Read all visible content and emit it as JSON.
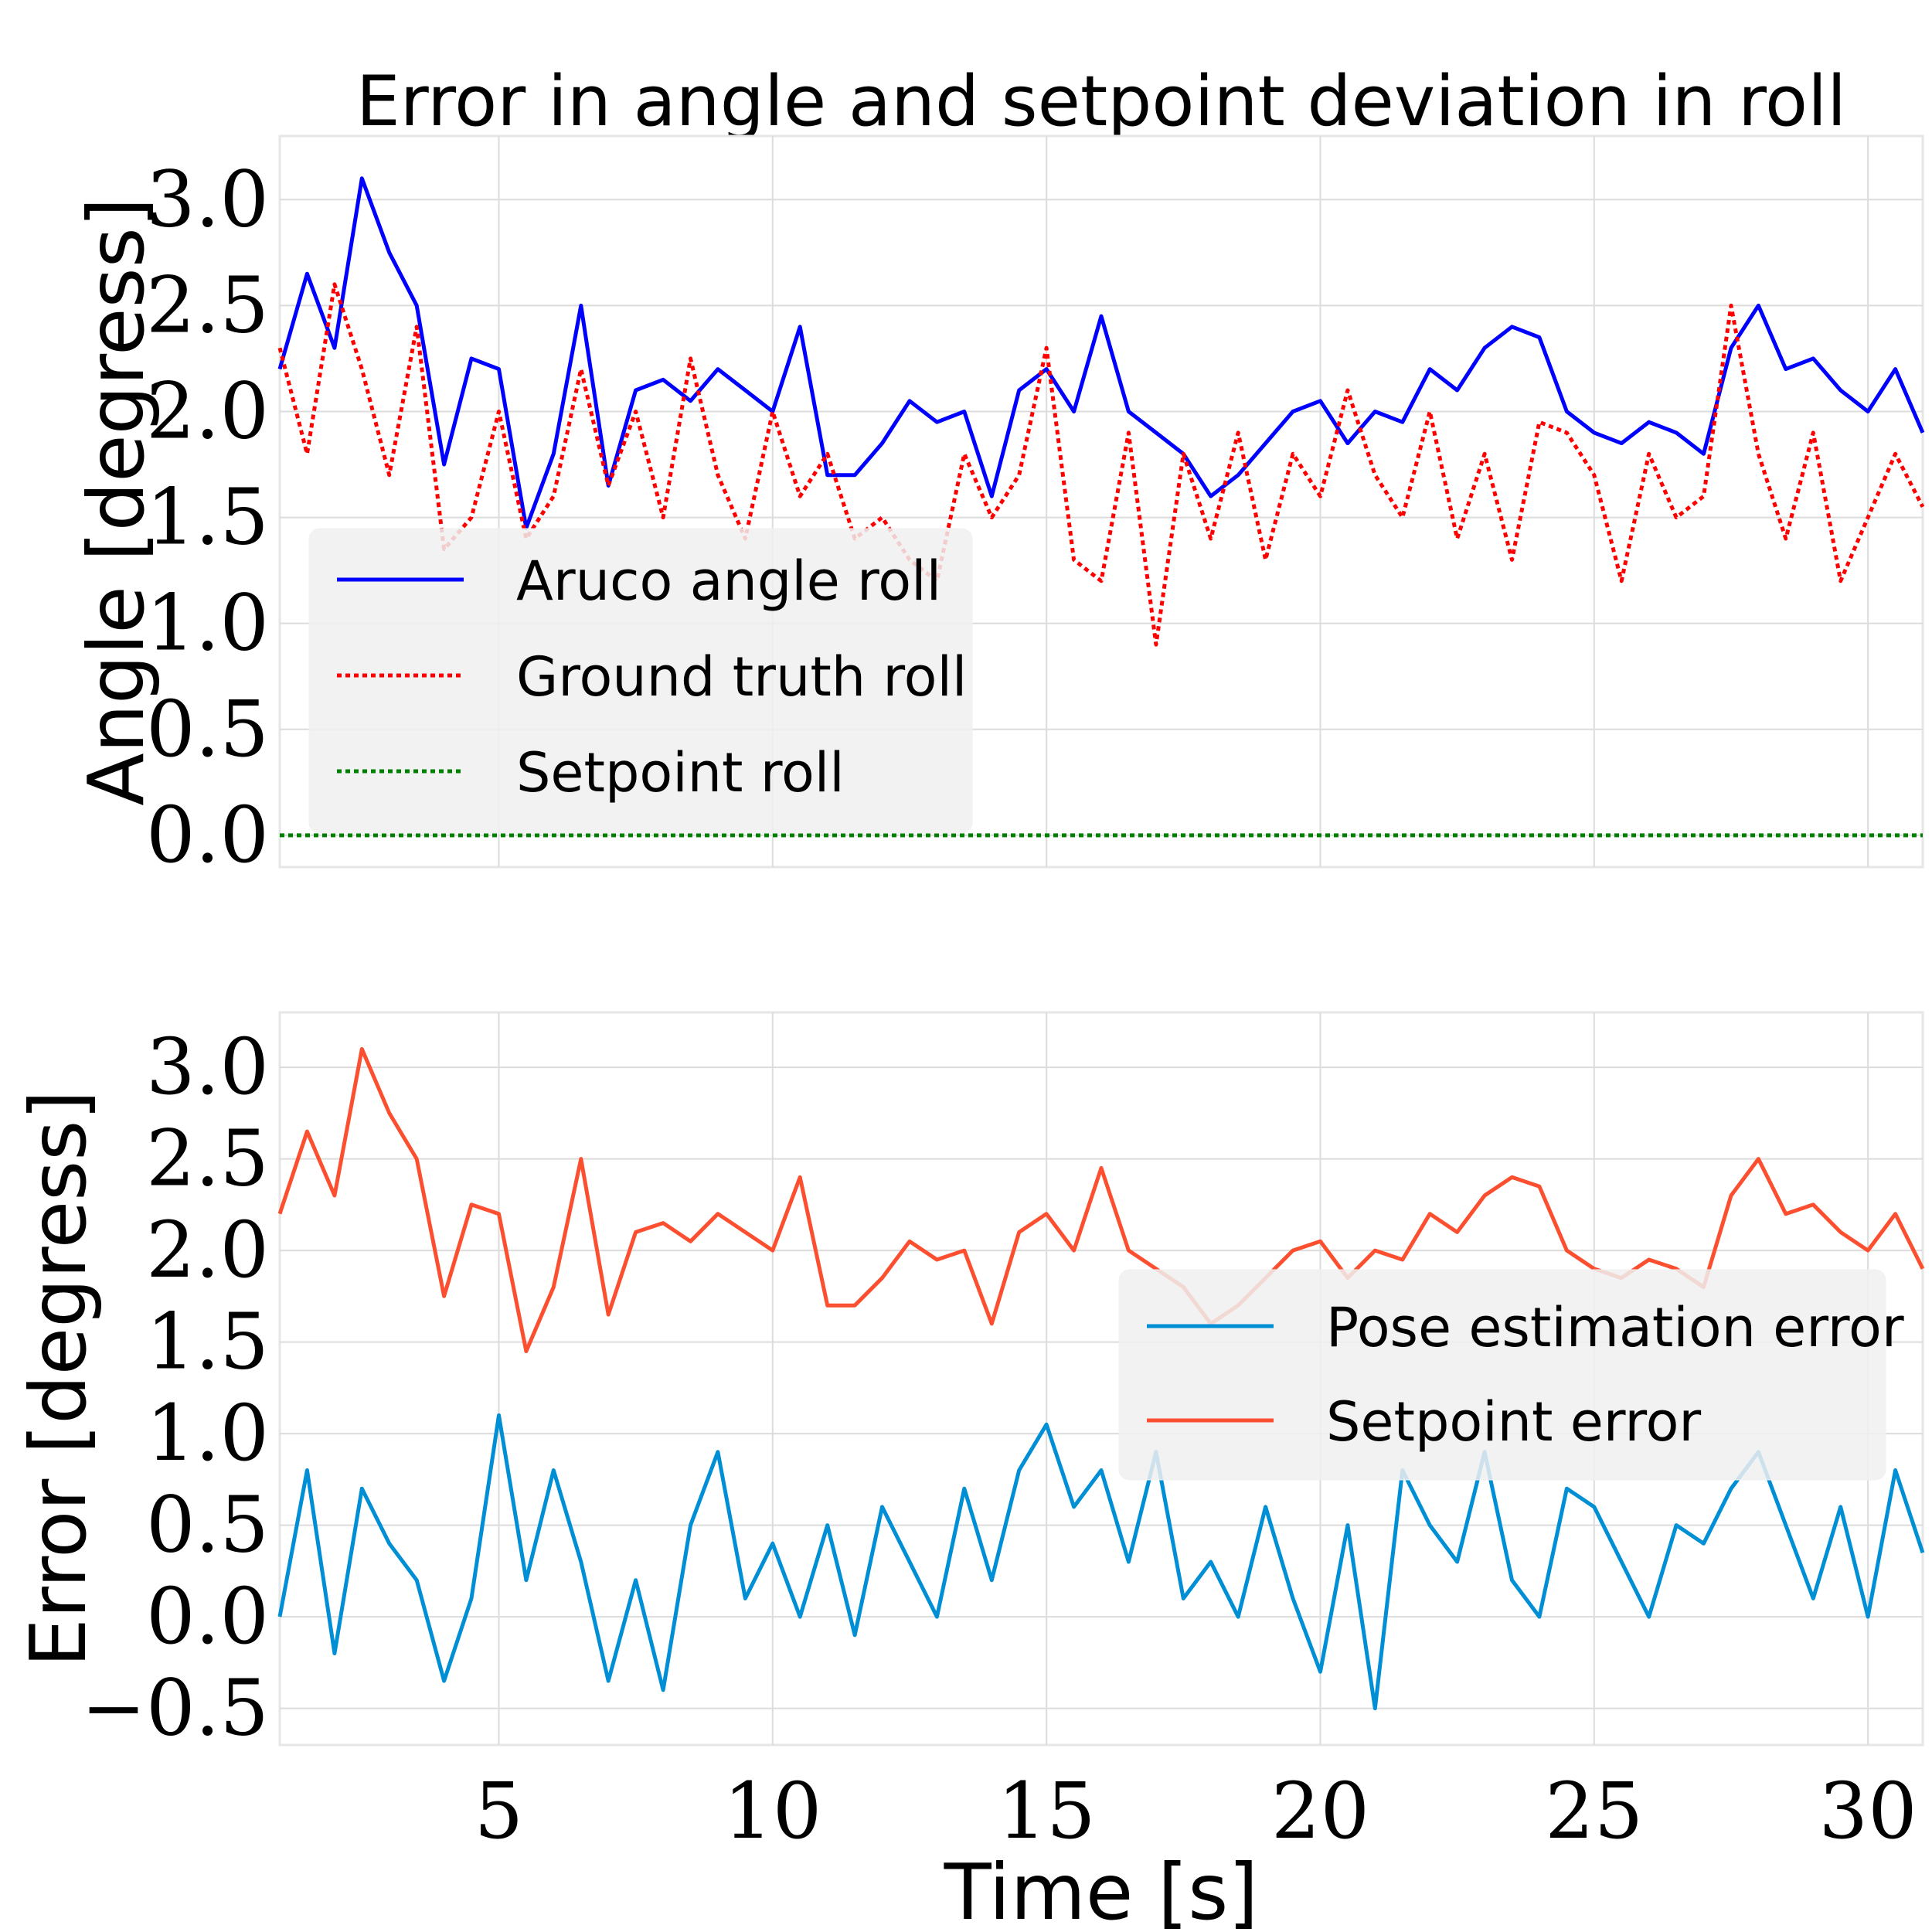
{
  "chart_data": [
    {
      "type": "line",
      "title": "Error in angle and setpoint deviation in roll",
      "xlabel": "",
      "ylabel": "Angle [degress]",
      "xlim": [
        1,
        31
      ],
      "ylim": [
        -0.15,
        3.3
      ],
      "xticks": [
        5,
        10,
        15,
        20,
        25,
        30
      ],
      "yticks": [
        0.0,
        0.5,
        1.0,
        1.5,
        2.0,
        2.5,
        3.0
      ],
      "ytick_labels": [
        "0.0",
        "0.5",
        "1.0",
        "1.5",
        "2.0",
        "2.5",
        "3.0"
      ],
      "show_xtick_labels": false,
      "grid": true,
      "legend_position": "lower-left",
      "x": [
        1.0,
        1.5,
        2.0,
        2.5,
        3.0,
        3.5,
        4.0,
        4.5,
        5.0,
        5.5,
        6.0,
        6.5,
        7.0,
        7.5,
        8.0,
        8.5,
        9.0,
        9.5,
        10.0,
        10.5,
        11.0,
        11.5,
        12.0,
        12.5,
        13.0,
        13.5,
        14.0,
        14.5,
        15.0,
        15.5,
        16.0,
        16.5,
        17.0,
        17.5,
        18.0,
        18.5,
        19.0,
        19.5,
        20.0,
        20.5,
        21.0,
        21.5,
        22.0,
        22.5,
        23.0,
        23.5,
        24.0,
        24.5,
        25.0,
        25.5,
        26.0,
        26.5,
        27.0,
        27.5,
        28.0,
        28.5,
        29.0,
        29.5,
        30.0,
        30.5,
        31.0
      ],
      "series": [
        {
          "name": "Aruco angle roll",
          "color": "#0000ff",
          "dash": "solid",
          "values": [
            2.2,
            2.65,
            2.3,
            3.1,
            2.75,
            2.5,
            1.75,
            2.25,
            2.2,
            1.45,
            1.8,
            2.5,
            1.65,
            2.1,
            2.15,
            2.05,
            2.2,
            2.1,
            2.0,
            2.4,
            1.7,
            1.7,
            1.85,
            2.05,
            1.95,
            2.0,
            1.6,
            2.1,
            2.2,
            2.0,
            2.45,
            2.0,
            1.9,
            1.8,
            1.6,
            1.7,
            1.85,
            2.0,
            2.05,
            1.85,
            2.0,
            1.95,
            2.2,
            2.1,
            2.3,
            2.4,
            2.35,
            2.0,
            1.9,
            1.85,
            1.95,
            1.9,
            1.8,
            2.3,
            2.5,
            2.2,
            2.25,
            2.1,
            2.0,
            2.2,
            1.9
          ]
        },
        {
          "name": "Ground truth roll",
          "color": "#ff0000",
          "dash": "dotted",
          "values": [
            2.3,
            1.8,
            2.6,
            2.2,
            1.7,
            2.4,
            1.35,
            1.5,
            2.0,
            1.4,
            1.6,
            2.2,
            1.65,
            2.0,
            1.5,
            2.25,
            1.7,
            1.4,
            2.0,
            1.6,
            1.8,
            1.4,
            1.5,
            1.3,
            1.2,
            1.8,
            1.5,
            1.7,
            2.3,
            1.3,
            1.2,
            1.9,
            0.9,
            1.8,
            1.4,
            1.9,
            1.3,
            1.8,
            1.6,
            2.1,
            1.7,
            1.5,
            2.0,
            1.4,
            1.8,
            1.3,
            1.95,
            1.9,
            1.7,
            1.2,
            1.8,
            1.5,
            1.6,
            2.5,
            1.8,
            1.4,
            1.9,
            1.2,
            1.5,
            1.8,
            1.55
          ]
        },
        {
          "name": "Setpoint roll",
          "color": "#008000",
          "dash": "dotted",
          "values": [
            0.0,
            0.0,
            0.0,
            0.0,
            0.0,
            0.0,
            0.0,
            0.0,
            0.0,
            0.0,
            0.0,
            0.0,
            0.0,
            0.0,
            0.0,
            0.0,
            0.0,
            0.0,
            0.0,
            0.0,
            0.0,
            0.0,
            0.0,
            0.0,
            0.0,
            0.0,
            0.0,
            0.0,
            0.0,
            0.0,
            0.0,
            0.0,
            0.0,
            0.0,
            0.0,
            0.0,
            0.0,
            0.0,
            0.0,
            0.0,
            0.0,
            0.0,
            0.0,
            0.0,
            0.0,
            0.0,
            0.0,
            0.0,
            0.0,
            0.0,
            0.0,
            0.0,
            0.0,
            0.0,
            0.0,
            0.0,
            0.0,
            0.0,
            0.0,
            0.0,
            0.0
          ]
        }
      ]
    },
    {
      "type": "line",
      "title": "",
      "xlabel": "Time [s]",
      "ylabel": "Error [degress]",
      "xlim": [
        1,
        31
      ],
      "ylim": [
        -0.7,
        3.3
      ],
      "xticks": [
        5,
        10,
        15,
        20,
        25,
        30
      ],
      "xtick_labels": [
        "5",
        "10",
        "15",
        "20",
        "25",
        "30"
      ],
      "yticks": [
        -0.5,
        0.0,
        0.5,
        1.0,
        1.5,
        2.0,
        2.5,
        3.0
      ],
      "ytick_labels": [
        "−0.5",
        "0.0",
        "0.5",
        "1.0",
        "1.5",
        "2.0",
        "2.5",
        "3.0"
      ],
      "grid": true,
      "legend_position": "center-right",
      "x": [
        1.0,
        1.5,
        2.0,
        2.5,
        3.0,
        3.5,
        4.0,
        4.5,
        5.0,
        5.5,
        6.0,
        6.5,
        7.0,
        7.5,
        8.0,
        8.5,
        9.0,
        9.5,
        10.0,
        10.5,
        11.0,
        11.5,
        12.0,
        12.5,
        13.0,
        13.5,
        14.0,
        14.5,
        15.0,
        15.5,
        16.0,
        16.5,
        17.0,
        17.5,
        18.0,
        18.5,
        19.0,
        19.5,
        20.0,
        20.5,
        21.0,
        21.5,
        22.0,
        22.5,
        23.0,
        23.5,
        24.0,
        24.5,
        25.0,
        25.5,
        26.0,
        26.5,
        27.0,
        27.5,
        28.0,
        28.5,
        29.0,
        29.5,
        30.0,
        30.5,
        31.0
      ],
      "series": [
        {
          "name": "Pose estimation error",
          "color": "#008fd5",
          "dash": "solid",
          "values": [
            0.0,
            0.8,
            -0.2,
            0.7,
            0.4,
            0.2,
            -0.35,
            0.1,
            1.1,
            0.2,
            0.8,
            0.3,
            -0.35,
            0.2,
            -0.4,
            0.5,
            0.9,
            0.1,
            0.4,
            0.0,
            0.5,
            -0.1,
            0.6,
            0.3,
            0.0,
            0.7,
            0.2,
            0.8,
            1.05,
            0.6,
            0.8,
            0.3,
            0.9,
            0.1,
            0.3,
            0.0,
            0.6,
            0.1,
            -0.3,
            0.5,
            -0.5,
            0.8,
            0.5,
            0.3,
            0.9,
            0.2,
            0.0,
            0.7,
            0.6,
            0.3,
            0.0,
            0.5,
            0.4,
            0.7,
            0.9,
            0.5,
            0.1,
            0.6,
            0.0,
            0.8,
            0.35
          ]
        },
        {
          "name": "Setpoint error",
          "color": "#fc4f30",
          "dash": "solid",
          "values": [
            2.2,
            2.65,
            2.3,
            3.1,
            2.75,
            2.5,
            1.75,
            2.25,
            2.2,
            1.45,
            1.8,
            2.5,
            1.65,
            2.1,
            2.15,
            2.05,
            2.2,
            2.1,
            2.0,
            2.4,
            1.7,
            1.7,
            1.85,
            2.05,
            1.95,
            2.0,
            1.6,
            2.1,
            2.2,
            2.0,
            2.45,
            2.0,
            1.9,
            1.8,
            1.6,
            1.7,
            1.85,
            2.0,
            2.05,
            1.85,
            2.0,
            1.95,
            2.2,
            2.1,
            2.3,
            2.4,
            2.35,
            2.0,
            1.9,
            1.85,
            1.95,
            1.9,
            1.8,
            2.3,
            2.5,
            2.2,
            2.25,
            2.1,
            2.0,
            2.2,
            1.9
          ]
        }
      ]
    }
  ]
}
